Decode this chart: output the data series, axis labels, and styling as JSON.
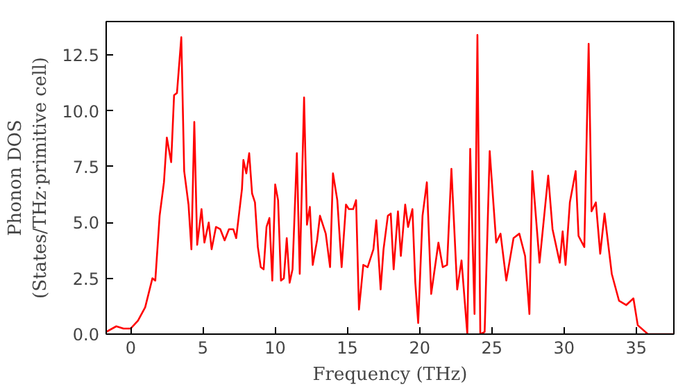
{
  "chart_data": {
    "type": "line",
    "xlabel": "Frequency (THz)",
    "ylabel": "Phonon DOS\n(States/THz·primitive cell)",
    "xlim": [
      -1.7,
      37.6
    ],
    "ylim": [
      0,
      14.0
    ],
    "xticks": [
      0,
      5,
      10,
      15,
      20,
      25,
      30,
      35
    ],
    "yticks": [
      {
        "value": 0,
        "label": "0.0"
      },
      2.5,
      {
        "value": 5,
        "label": "5.0"
      },
      7.5,
      {
        "value": 10,
        "label": "10.0"
      },
      12.5
    ],
    "grid": false,
    "series": [
      {
        "color": "#ff0000",
        "x": [
          -1.7,
          -1,
          -0.5,
          0,
          0.5,
          1,
          1.5,
          1.7,
          2,
          2.3,
          2.5,
          2.8,
          3,
          3.2,
          3.5,
          3.7,
          4,
          4.2,
          4.4,
          4.6,
          4.9,
          5.1,
          5.4,
          5.6,
          5.9,
          6.2,
          6.5,
          6.8,
          7.1,
          7.3,
          7.7,
          7.8,
          8.0,
          8.2,
          8.4,
          8.6,
          8.8,
          9.0,
          9.2,
          9.4,
          9.6,
          9.8,
          10.0,
          10.2,
          10.4,
          10.6,
          10.8,
          11.0,
          11.2,
          11.5,
          11.7,
          12.0,
          12.2,
          12.4,
          12.6,
          12.9,
          13.1,
          13.5,
          13.8,
          14.0,
          14.3,
          14.6,
          14.9,
          15.1,
          15.4,
          15.6,
          15.8,
          16.1,
          16.4,
          16.8,
          17.0,
          17.3,
          17.5,
          17.8,
          18.0,
          18.2,
          18.5,
          18.7,
          19.0,
          19.2,
          19.5,
          19.7,
          19.9,
          20.2,
          20.5,
          20.8,
          21.3,
          21.6,
          21.9,
          22.2,
          22.6,
          22.9,
          23.3,
          23.5,
          23.8,
          24.0,
          24.2,
          24.5,
          24.85,
          25.3,
          25.6,
          26.0,
          26.5,
          26.9,
          27.3,
          27.6,
          27.8,
          28.3,
          28.9,
          29.2,
          29.7,
          29.9,
          30.1,
          30.4,
          30.8,
          31.0,
          31.4,
          31.7,
          31.9,
          32.2,
          32.5,
          32.8,
          33.3,
          33.8,
          34.3,
          34.8,
          35.1,
          35.8,
          37.6
        ],
        "values": [
          0.1,
          0.35,
          0.25,
          0.25,
          0.6,
          1.2,
          2.5,
          2.4,
          5.3,
          6.8,
          8.8,
          7.7,
          10.7,
          10.8,
          13.3,
          7.3,
          5.8,
          3.8,
          9.5,
          4.0,
          5.6,
          4.1,
          5.0,
          3.8,
          4.8,
          4.7,
          4.2,
          4.7,
          4.7,
          4.3,
          6.5,
          7.8,
          7.2,
          8.1,
          6.3,
          5.9,
          3.9,
          3.0,
          2.9,
          4.8,
          5.2,
          2.4,
          6.7,
          6.0,
          2.4,
          2.5,
          4.3,
          2.3,
          2.9,
          8.1,
          2.7,
          10.6,
          4.9,
          5.7,
          3.1,
          4.2,
          5.3,
          4.5,
          3.0,
          7.2,
          6.0,
          3.0,
          5.8,
          5.6,
          5.6,
          6.0,
          1.1,
          3.1,
          3.0,
          3.8,
          5.1,
          2.0,
          3.8,
          5.3,
          5.4,
          2.9,
          5.5,
          3.5,
          5.8,
          4.8,
          5.6,
          2.3,
          0.5,
          5.3,
          6.8,
          1.8,
          4.1,
          3.0,
          3.1,
          7.4,
          2.0,
          3.3,
          0,
          8.3,
          0.9,
          13.4,
          0,
          0.1,
          8.2,
          4.1,
          4.5,
          2.4,
          4.3,
          4.5,
          3.5,
          0.9,
          7.3,
          3.2,
          7.1,
          4.7,
          3.2,
          4.6,
          3.1,
          5.9,
          7.3,
          4.4,
          3.9,
          13.0,
          5.5,
          5.9,
          3.6,
          5.4,
          2.7,
          1.5,
          1.3,
          1.6,
          0.4,
          0,
          0
        ]
      }
    ]
  }
}
